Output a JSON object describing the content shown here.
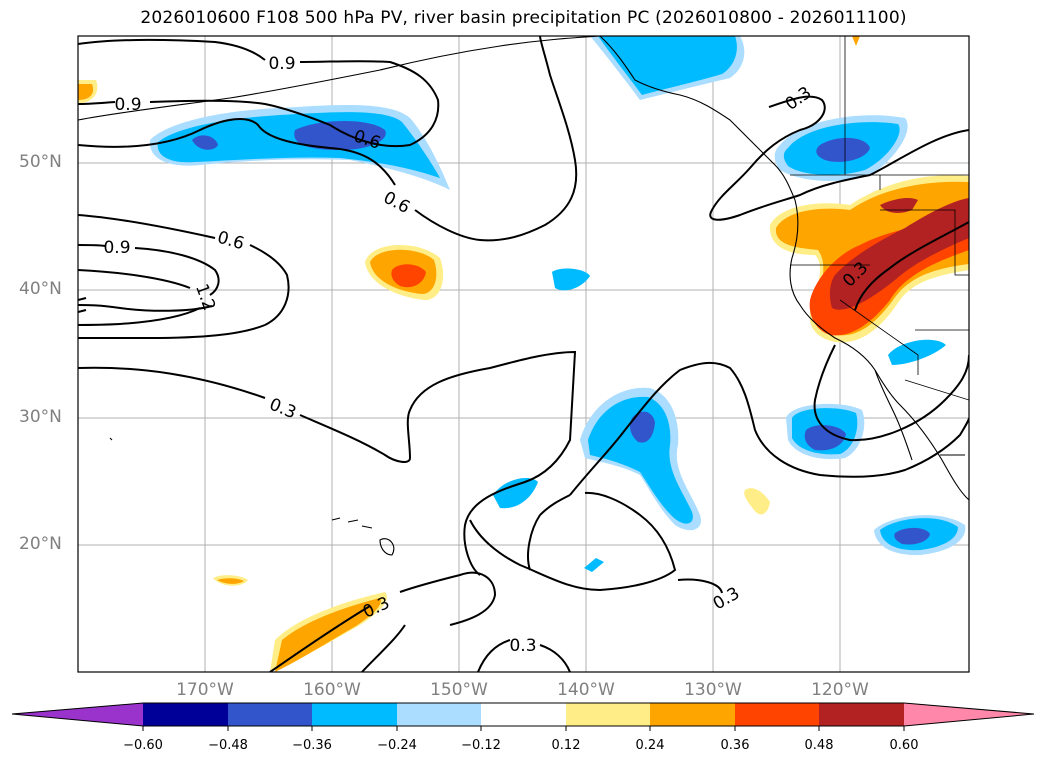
{
  "title": "2026010600 F108 500 hPa PV, river basin precipitation PC (2026010800 - 2026011100)",
  "lat_labels": [
    "50°N",
    "40°N",
    "30°N",
    "20°N"
  ],
  "lon_labels": [
    "170°W",
    "160°W",
    "150°W",
    "140°W",
    "130°W",
    "120°W"
  ],
  "contour_labels": [
    "0.9",
    "0.9",
    "0.6",
    "0.6",
    "0.6",
    "0.9",
    "1.2",
    "0.3",
    "0.3",
    "0.3",
    "0.3",
    "0.3",
    "0.3"
  ],
  "colorbar": {
    "ticks": [
      "−0.60",
      "−0.48",
      "−0.36",
      "−0.24",
      "−0.12",
      "0.12",
      "0.24",
      "0.36",
      "0.48",
      "0.60"
    ],
    "colors": [
      "#9933cc",
      "#000099",
      "#3355cc",
      "#00bbff",
      "#aaddff",
      "#ffffff",
      "#ffee88",
      "#ffa500",
      "#ff4400",
      "#b22222",
      "#ff88aa"
    ]
  },
  "colors": {
    "blue_light": "#aaddff",
    "blue_mid": "#00bbff",
    "blue_dark": "#3355cc",
    "yellow": "#ffee88",
    "orange": "#ffa500",
    "red": "#ff4400",
    "darkred": "#b22222"
  }
}
